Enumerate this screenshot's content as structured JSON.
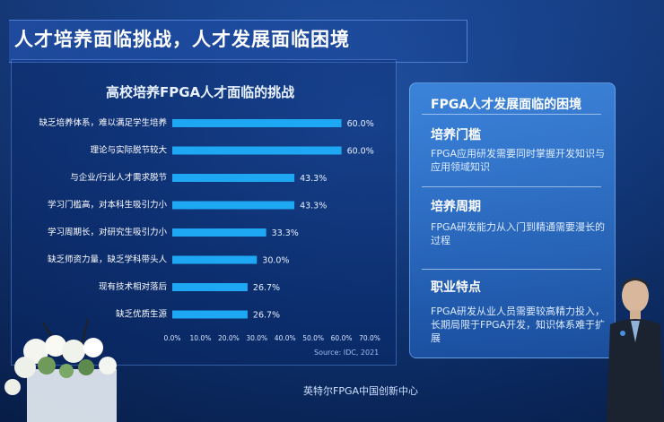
{
  "slide": {
    "title": "人才培养面临挑战，人才发展面临困境",
    "footer": "英特尔FPGA中国创新中心",
    "podium_text": "英特尔FPGA中国创新中心"
  },
  "chart_data": {
    "type": "bar",
    "orientation": "horizontal",
    "title": "高校培养FPGA人才面临的挑战",
    "categories": [
      "缺乏培养体系，难以满足学生培养",
      "理论与实际脱节较大",
      "与企业/行业人才需求脱节",
      "学习门槛高，对本科生吸引力小",
      "学习周期长，对研究生吸引力小",
      "缺乏师资力量，缺乏学科带头人",
      "现有技术相对落后",
      "缺乏优质生源"
    ],
    "values": [
      60.0,
      60.0,
      43.3,
      43.3,
      33.3,
      30.0,
      26.7,
      26.7
    ],
    "value_labels": [
      "60.0%",
      "60.0%",
      "43.3%",
      "43.3%",
      "33.3%",
      "30.0%",
      "26.7%",
      "26.7%"
    ],
    "xlim": [
      0,
      70
    ],
    "x_ticks": [
      "0.0%",
      "10.0%",
      "20.0%",
      "30.0%",
      "40.0%",
      "50.0%",
      "60.0%",
      "70.0%"
    ],
    "source": "Source: IDC, 2021",
    "bar_color": "#1ea7f2",
    "grid": false
  },
  "right_panel": {
    "title": "FPGA人才发展面临的困境",
    "sections": [
      {
        "heading": "培养门槛",
        "body": "FPGA应用研发需要同时掌握开发知识与应用领域知识"
      },
      {
        "heading": "培养周期",
        "body": "FPGA研发能力从入门到精通需要漫长的过程"
      },
      {
        "heading": "职业特点",
        "body": "FPGA研发从业人员需要较高精力投入，长期局限于FPGA开发，知识体系难于扩展"
      }
    ]
  }
}
